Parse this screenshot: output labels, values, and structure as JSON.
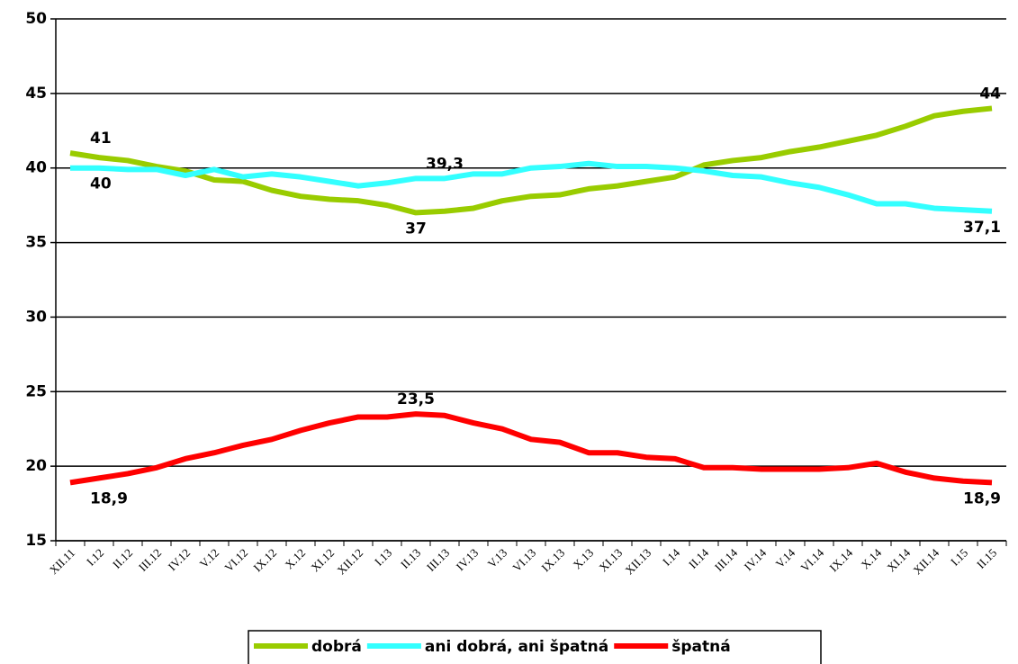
{
  "chart_data": {
    "type": "line",
    "categories": [
      "XII.11",
      "I.12",
      "II.12",
      "III.12",
      "IV.12",
      "V.12",
      "VI.12",
      "IX.12",
      "X.12",
      "XI.12",
      "XII.12",
      "I.13",
      "II.13",
      "III.13",
      "IV.13",
      "V.13",
      "VI.13",
      "IX.13",
      "X.13",
      "XI.13",
      "XII.13",
      "I.14",
      "II.14",
      "III.14",
      "IV.14",
      "V.14",
      "VI.14",
      "IX.14",
      "X.14",
      "XI.14",
      "XII.14",
      "I.15",
      "II.15"
    ],
    "series": [
      {
        "name": "dobrá",
        "color": "#99cc00",
        "values": [
          41,
          40.7,
          40.5,
          40.1,
          39.8,
          39.2,
          39.1,
          38.5,
          38.1,
          37.9,
          37.8,
          37.5,
          37.0,
          37.1,
          37.3,
          37.8,
          38.1,
          38.2,
          38.6,
          38.8,
          39.1,
          39.4,
          40.2,
          40.5,
          40.7,
          41.1,
          41.4,
          41.8,
          42.2,
          42.8,
          43.5,
          43.8,
          44.0
        ],
        "value_labels": [
          "41",
          null,
          null,
          null,
          null,
          null,
          null,
          null,
          null,
          null,
          null,
          null,
          "37",
          null,
          null,
          null,
          null,
          null,
          null,
          null,
          null,
          null,
          null,
          null,
          null,
          null,
          null,
          null,
          null,
          null,
          null,
          null,
          "44"
        ]
      },
      {
        "name": "ani dobrá, ani špatná",
        "color": "#33ffff",
        "values": [
          40,
          40,
          39.9,
          39.9,
          39.5,
          39.9,
          39.4,
          39.6,
          39.4,
          39.1,
          38.8,
          39.0,
          39.3,
          39.3,
          39.6,
          39.6,
          40.0,
          40.1,
          40.3,
          40.1,
          40.1,
          40.0,
          39.8,
          39.5,
          39.4,
          39.0,
          38.7,
          38.2,
          37.6,
          37.6,
          37.3,
          37.2,
          37.1
        ],
        "value_labels": [
          "40",
          null,
          null,
          null,
          null,
          null,
          null,
          null,
          null,
          null,
          null,
          null,
          null,
          "39,3",
          null,
          null,
          null,
          null,
          null,
          null,
          null,
          null,
          null,
          null,
          null,
          null,
          null,
          null,
          null,
          null,
          null,
          null,
          "37,1"
        ]
      },
      {
        "name": "špatná",
        "color": "#ff0000",
        "values": [
          18.9,
          19.2,
          19.5,
          19.9,
          20.5,
          20.9,
          21.4,
          21.8,
          22.4,
          22.9,
          23.3,
          23.3,
          23.5,
          23.4,
          22.9,
          22.5,
          21.8,
          21.6,
          20.9,
          20.9,
          20.6,
          20.5,
          19.9,
          19.9,
          19.8,
          19.8,
          19.8,
          19.9,
          20.2,
          19.6,
          19.2,
          19.0,
          18.9
        ],
        "value_labels": [
          "18,9",
          null,
          null,
          null,
          null,
          null,
          null,
          null,
          null,
          null,
          null,
          null,
          "23,5",
          null,
          null,
          null,
          null,
          null,
          null,
          null,
          null,
          null,
          null,
          null,
          null,
          null,
          null,
          null,
          null,
          null,
          null,
          null,
          "18,9"
        ]
      }
    ],
    "ylim": [
      15,
      50
    ],
    "yticks": [
      15,
      20,
      25,
      30,
      35,
      40,
      45,
      50
    ],
    "grid": true
  }
}
